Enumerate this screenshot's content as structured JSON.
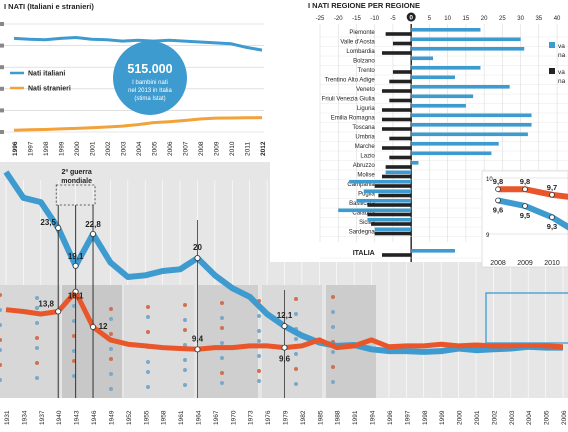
{
  "colors": {
    "blue": "#3d9bd0",
    "orange": "#e8562a",
    "dark": "#222222",
    "grey_band": "#e6e6e6",
    "bubble": "#3d9bd0",
    "orange_series": "#f2a23a"
  },
  "top_left": {
    "title": "I NATI (Italiani e stranieri)",
    "legend": [
      {
        "name": "Nati italiani",
        "color": "#3d9bd0"
      },
      {
        "name": "Nati stranieri",
        "color": "#f2a23a"
      }
    ],
    "bubble": {
      "value": "515.000",
      "text": "I bambini nati nel 2013 in Italia (stima Istat)"
    }
  },
  "top_right": {
    "title": "I NATI REGIONE PER REGIONE",
    "legend": [
      {
        "name": "va na",
        "color": "#3d9bd0"
      },
      {
        "name": "va na",
        "color": "#222222"
      }
    ]
  },
  "main_chart": {
    "annotation": "2ª guerra mondiale",
    "shaded_years": "1996–2012"
  },
  "chart_data": [
    {
      "type": "line",
      "title": "I NATI (Italiani e stranieri)",
      "x": [
        "1996",
        "1997",
        "1998",
        "1999",
        "2000",
        "2001",
        "2002",
        "2003",
        "2004",
        "2005",
        "2006",
        "2007",
        "2008",
        "2009",
        "2010",
        "2011",
        "2012"
      ],
      "series": [
        {
          "name": "Nati italiani",
          "values": [
            520,
            515,
            512,
            520,
            525,
            515,
            512,
            505,
            510,
            505,
            510,
            505,
            500,
            495,
            490,
            470,
            455
          ]
        },
        {
          "name": "Nati stranieri",
          "values": [
            10,
            12,
            14,
            17,
            20,
            24,
            28,
            33,
            41,
            52,
            57,
            64,
            72,
            77,
            78,
            79,
            80
          ]
        }
      ],
      "grid": true,
      "legend": "left"
    },
    {
      "type": "bar",
      "title": "I NATI REGIONE PER REGIONE",
      "categories": [
        "Piemonte",
        "Valle d'Aosta",
        "Lombardia",
        "Bolzano",
        "Trento",
        "Trentino Alto Adige",
        "Veneto",
        "Friuli Venezia Giulia",
        "Liguria",
        "Emilia Romagna",
        "Toscana",
        "Umbria",
        "Marche",
        "Lazio",
        "Abruzzo",
        "Molise",
        "Campania",
        "Puglia",
        "Basilicata",
        "Calabria",
        "Sicilia",
        "Sardegna",
        "ITALIA"
      ],
      "x_ticks": [
        "-25",
        "-20",
        "-15",
        "-10",
        "-5",
        "0",
        "5",
        "10",
        "15",
        "20",
        "25",
        "30",
        "35",
        "40"
      ],
      "series": [
        {
          "name": "va na",
          "values": [
            19,
            30,
            31,
            6,
            19,
            12,
            27,
            17,
            15,
            33,
            33,
            32,
            24,
            22,
            2,
            -7,
            -17,
            -13,
            -15,
            -20,
            -12,
            -10,
            12
          ]
        },
        {
          "name": "va na",
          "values": [
            -7,
            -5,
            -8,
            0,
            -5,
            -6,
            -8,
            -6,
            -8,
            -8,
            -8,
            -6,
            -8,
            -6,
            -7,
            -8,
            -10,
            -9,
            -12,
            -12,
            -11,
            -10,
            -8
          ]
        }
      ],
      "xlim": [
        -25,
        43
      ],
      "legend": "right"
    },
    {
      "type": "line",
      "x": [
        "1931",
        "1934",
        "1937",
        "1940",
        "1943",
        "1946",
        "1949",
        "1952",
        "1955",
        "1958",
        "1961",
        "1964",
        "1967",
        "1970",
        "1973",
        "1976",
        "1979",
        "1982",
        "1985",
        "1988",
        "1991",
        "1994",
        "1996",
        "1997",
        "1998",
        "1999",
        "2000",
        "2001",
        "2002",
        "2003",
        "2004",
        "2005",
        "2006"
      ],
      "series": [
        {
          "name": "",
          "values": [
            30,
            27,
            26.5,
            23.5,
            19.1,
            22.8,
            19.5,
            17.8,
            18,
            18.5,
            18.7,
            20,
            18,
            16.5,
            15.5,
            13.5,
            12.1,
            11,
            10.2,
            9.8,
            9.9,
            9.4,
            9.2,
            9.2,
            9.1,
            9.2,
            9.5,
            9.3,
            9.4,
            9.5,
            9.7,
            9.6,
            9.6
          ]
        },
        {
          "name": "",
          "values": [
            14,
            13.8,
            13.5,
            13.8,
            16.1,
            12,
            10.5,
            10,
            9.8,
            9.6,
            9.5,
            9.4,
            9.6,
            9.6,
            9.8,
            9.8,
            9.6,
            9.8,
            10.5,
            9.6,
            9.8,
            10.5,
            9.7,
            9.8,
            9.8,
            10,
            9.8,
            9.9,
            9.8,
            9.8,
            9.9,
            9.8,
            9.7
          ]
        }
      ],
      "labels": [
        "23,5",
        "19,1",
        "22,8",
        "13,8",
        "16,1",
        "12",
        "20",
        "9,4",
        "12,1",
        "9,6"
      ]
    },
    {
      "type": "line",
      "x": [
        "2008",
        "2009",
        "2010"
      ],
      "y_ticks": [
        "10",
        "9"
      ],
      "series": [
        {
          "name": "",
          "values": [
            9.8,
            9.8,
            9.7
          ]
        },
        {
          "name": "",
          "values": [
            9.6,
            9.5,
            9.3
          ]
        }
      ],
      "labels": [
        "9,8",
        "9,8",
        "9,7",
        "9,6",
        "9,5",
        "9,3"
      ]
    }
  ]
}
